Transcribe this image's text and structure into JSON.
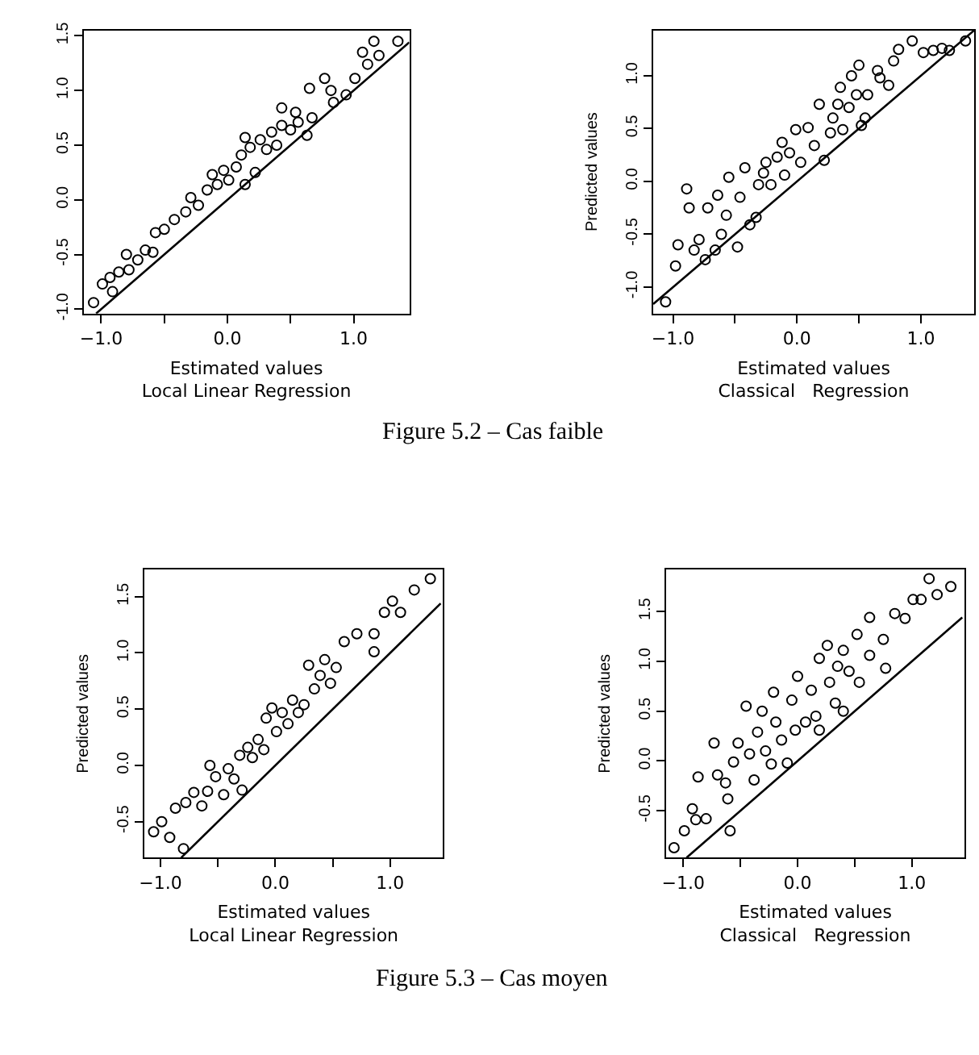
{
  "chart_data": [
    {
      "type": "scatter",
      "xlabel": "Estimated values\nLocal Linear Regression",
      "xlim": [
        -1.14,
        1.44
      ],
      "ylim": [
        -1.04,
        1.55
      ],
      "xticks": [
        {
          "value": -1,
          "label": "−1.0"
        },
        {
          "value": -0.5,
          "label": null
        },
        {
          "value": 0,
          "label": "0.0"
        },
        {
          "value": 0.5,
          "label": null
        },
        {
          "value": 1,
          "label": "1.0"
        }
      ],
      "yticks": [
        {
          "value": -1,
          "label": "-1.0"
        },
        {
          "value": -0.5,
          "label": "-0.5"
        },
        {
          "value": 0,
          "label": "0.0"
        },
        {
          "value": 0.5,
          "label": "0.5"
        },
        {
          "value": 1,
          "label": "1.0"
        },
        {
          "value": 1.5,
          "label": "1.5"
        }
      ],
      "annotations": [
        "Figure 5.2 – Cas faible"
      ],
      "series": [
        {
          "marker": "circle",
          "color": "#000000",
          "x": [
            -1.06,
            -0.99,
            -0.91,
            -0.93,
            -0.86,
            -0.78,
            -0.8,
            -0.71,
            -0.65,
            -0.59,
            -0.57,
            -0.5,
            -0.42,
            -0.33,
            -0.29,
            -0.23,
            -0.16,
            -0.12,
            -0.08,
            -0.03,
            0.01,
            0.07,
            0.14,
            0.11,
            0.18,
            0.14,
            0.22,
            0.26,
            0.31,
            0.35,
            0.39,
            0.43,
            0.43,
            0.5,
            0.54,
            0.56,
            0.63,
            0.67,
            0.65,
            0.77,
            0.82,
            0.84,
            0.94,
            1.01,
            1.07,
            1.11,
            1.16,
            1.2,
            1.35
          ],
          "values": [
            -0.94,
            -0.77,
            -0.84,
            -0.71,
            -0.66,
            -0.64,
            -0.5,
            -0.55,
            -0.46,
            -0.48,
            -0.3,
            -0.27,
            -0.18,
            -0.11,
            0.02,
            -0.05,
            0.09,
            0.23,
            0.14,
            0.27,
            0.18,
            0.3,
            0.14,
            0.41,
            0.48,
            0.57,
            0.25,
            0.55,
            0.46,
            0.62,
            0.5,
            0.68,
            0.84,
            0.64,
            0.8,
            0.71,
            0.59,
            0.75,
            1.02,
            1.11,
            1.0,
            0.89,
            0.96,
            1.11,
            1.35,
            1.24,
            1.45,
            1.32,
            1.45
          ]
        },
        {
          "type": "line",
          "marker": "none",
          "line_style": "solid",
          "color": "#000000",
          "x": [
            -1.04,
            1.44
          ],
          "values": [
            -1.04,
            1.44
          ]
        }
      ]
    },
    {
      "type": "scatter",
      "xlabel": "Estimated values\nClassical   Regression",
      "ylabel": "Predicted values",
      "xlim": [
        -1.16,
        1.43
      ],
      "ylim": [
        -1.25,
        1.43
      ],
      "xticks": [
        {
          "value": -1,
          "label": "−1.0"
        },
        {
          "value": -0.5,
          "label": null
        },
        {
          "value": 0,
          "label": "0.0"
        },
        {
          "value": 0.5,
          "label": null
        },
        {
          "value": 1,
          "label": "1.0"
        }
      ],
      "yticks": [
        {
          "value": -1,
          "label": "-1.0"
        },
        {
          "value": -0.5,
          "label": "-0.5"
        },
        {
          "value": 0,
          "label": "0.0"
        },
        {
          "value": 0.5,
          "label": "0.5"
        },
        {
          "value": 1,
          "label": "1.0"
        }
      ],
      "series": [
        {
          "marker": "circle",
          "color": "#000000",
          "x": [
            -1.06,
            -0.98,
            -0.96,
            -0.89,
            -0.87,
            -0.83,
            -0.79,
            -0.74,
            -0.72,
            -0.66,
            -0.64,
            -0.61,
            -0.57,
            -0.55,
            -0.48,
            -0.46,
            -0.42,
            -0.38,
            -0.33,
            -0.31,
            -0.27,
            -0.25,
            -0.21,
            -0.16,
            -0.12,
            -0.1,
            -0.06,
            -0.01,
            0.03,
            0.09,
            0.14,
            0.18,
            0.22,
            0.27,
            0.29,
            0.33,
            0.35,
            0.37,
            0.42,
            0.44,
            0.48,
            0.5,
            0.52,
            0.55,
            0.57,
            0.65,
            0.67,
            0.74,
            0.78,
            0.82,
            0.93,
            1.02,
            1.1,
            1.17,
            1.23,
            1.36
          ],
          "values": [
            -1.14,
            -0.8,
            -0.6,
            -0.07,
            -0.25,
            -0.65,
            -0.55,
            -0.74,
            -0.25,
            -0.65,
            -0.13,
            -0.5,
            -0.32,
            0.04,
            -0.62,
            -0.15,
            0.13,
            -0.41,
            -0.34,
            -0.03,
            0.08,
            0.18,
            -0.03,
            0.23,
            0.37,
            0.06,
            0.27,
            0.49,
            0.18,
            0.51,
            0.34,
            0.73,
            0.2,
            0.46,
            0.6,
            0.73,
            0.89,
            0.49,
            0.7,
            1.0,
            0.82,
            1.1,
            0.53,
            0.6,
            0.82,
            1.05,
            0.98,
            0.91,
            1.14,
            1.25,
            1.33,
            1.22,
            1.24,
            1.26,
            1.24,
            1.33
          ]
        },
        {
          "type": "line",
          "marker": "none",
          "line_style": "solid",
          "color": "#000000",
          "x": [
            -1.16,
            1.43
          ],
          "values": [
            -1.16,
            1.43
          ]
        }
      ]
    },
    {
      "type": "scatter",
      "xlabel": "Estimated values\nLocal Linear Regression",
      "ylabel": "Predicted values",
      "xlim": [
        -1.14,
        1.46
      ],
      "ylim": [
        -0.82,
        1.74
      ],
      "xticks": [
        {
          "value": -1,
          "label": "−1.0"
        },
        {
          "value": -0.5,
          "label": null
        },
        {
          "value": 0,
          "label": "0.0"
        },
        {
          "value": 0.5,
          "label": null
        },
        {
          "value": 1,
          "label": "1.0"
        }
      ],
      "yticks": [
        {
          "value": -0.5,
          "label": "-0.5"
        },
        {
          "value": 0,
          "label": "0.0"
        },
        {
          "value": 0.5,
          "label": "0.5"
        },
        {
          "value": 1,
          "label": "1.0"
        },
        {
          "value": 1.5,
          "label": "1.5"
        }
      ],
      "annotations": [
        "Figure 5.3 – Cas moyen"
      ],
      "series": [
        {
          "marker": "circle",
          "color": "#000000",
          "x": [
            -1.06,
            -0.99,
            -0.92,
            -0.87,
            -0.8,
            -0.78,
            -0.71,
            -0.64,
            -0.59,
            -0.57,
            -0.52,
            -0.45,
            -0.41,
            -0.36,
            -0.31,
            -0.29,
            -0.24,
            -0.2,
            -0.15,
            -0.1,
            -0.08,
            -0.03,
            0.01,
            0.06,
            0.11,
            0.15,
            0.2,
            0.25,
            0.29,
            0.34,
            0.39,
            0.43,
            0.48,
            0.53,
            0.6,
            0.71,
            0.86,
            0.86,
            0.95,
            1.02,
            1.09,
            1.21,
            1.35
          ],
          "values": [
            -0.59,
            -0.5,
            -0.64,
            -0.38,
            -0.74,
            -0.33,
            -0.24,
            -0.36,
            -0.23,
            0.0,
            -0.1,
            -0.26,
            -0.03,
            -0.12,
            0.09,
            -0.22,
            0.16,
            0.07,
            0.23,
            0.14,
            0.42,
            0.51,
            0.3,
            0.47,
            0.37,
            0.58,
            0.47,
            0.54,
            0.89,
            0.68,
            0.8,
            0.94,
            0.73,
            0.87,
            1.1,
            1.17,
            1.01,
            1.17,
            1.36,
            1.46,
            1.36,
            1.56,
            1.66
          ]
        },
        {
          "type": "line",
          "marker": "none",
          "line_style": "solid",
          "color": "#000000",
          "x": [
            -0.82,
            1.44
          ],
          "values": [
            -0.82,
            1.44
          ]
        }
      ]
    },
    {
      "type": "scatter",
      "xlabel": "Estimated values\nClassical   Regression",
      "ylabel": "Predicted values",
      "xlim": [
        -1.15,
        1.46
      ],
      "ylim": [
        -0.97,
        1.92
      ],
      "xticks": [
        {
          "value": -1,
          "label": "−1.0"
        },
        {
          "value": -0.5,
          "label": null
        },
        {
          "value": 0,
          "label": "0.0"
        },
        {
          "value": 0.5,
          "label": null
        },
        {
          "value": 1,
          "label": "1.0"
        }
      ],
      "yticks": [
        {
          "value": -0.5,
          "label": "-0.5"
        },
        {
          "value": 0,
          "label": "0.0"
        },
        {
          "value": 0.5,
          "label": "0.5"
        },
        {
          "value": 1,
          "label": "1.0"
        },
        {
          "value": 1.5,
          "label": "1.5"
        }
      ],
      "series": [
        {
          "marker": "circle",
          "color": "#000000",
          "x": [
            -1.08,
            -0.99,
            -0.92,
            -0.89,
            -0.87,
            -0.8,
            -0.73,
            -0.7,
            -0.63,
            -0.61,
            -0.59,
            -0.56,
            -0.52,
            -0.45,
            -0.42,
            -0.38,
            -0.35,
            -0.31,
            -0.28,
            -0.23,
            -0.21,
            -0.19,
            -0.14,
            -0.09,
            -0.05,
            -0.02,
            0.0,
            0.07,
            0.12,
            0.16,
            0.19,
            0.19,
            0.26,
            0.28,
            0.33,
            0.35,
            0.4,
            0.4,
            0.45,
            0.52,
            0.54,
            0.63,
            0.63,
            0.75,
            0.77,
            0.85,
            0.94,
            1.01,
            1.08,
            1.15,
            1.22,
            1.34
          ],
          "values": [
            -0.87,
            -0.7,
            -0.48,
            -0.59,
            -0.16,
            -0.58,
            0.18,
            -0.14,
            -0.22,
            -0.38,
            -0.7,
            -0.01,
            0.18,
            0.55,
            0.07,
            -0.19,
            0.29,
            0.5,
            0.1,
            -0.03,
            0.69,
            0.39,
            0.21,
            -0.02,
            0.61,
            0.31,
            0.85,
            0.39,
            0.71,
            0.45,
            0.31,
            1.03,
            1.16,
            0.79,
            0.58,
            0.95,
            1.11,
            0.5,
            0.9,
            1.27,
            0.79,
            1.44,
            1.06,
            1.22,
            0.93,
            1.48,
            1.43,
            1.62,
            1.62,
            1.83,
            1.67,
            1.75
          ]
        },
        {
          "type": "line",
          "marker": "none",
          "line_style": "solid",
          "color": "#000000",
          "x": [
            -0.97,
            1.44
          ],
          "values": [
            -0.97,
            1.44
          ]
        }
      ]
    }
  ]
}
